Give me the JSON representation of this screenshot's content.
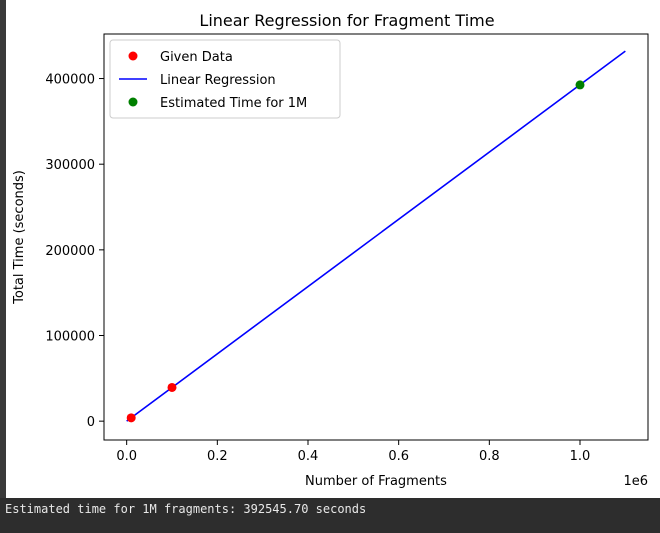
{
  "chart_data": {
    "type": "scatter",
    "title": "Linear Regression for Fragment Time",
    "xlabel": "Number of Fragments",
    "ylabel": "Total Time (seconds)",
    "x_offset_label": "1e6",
    "xlim": [
      -0.05,
      1.15
    ],
    "ylim": [
      -22000,
      452000
    ],
    "x_ticks": [
      0.0,
      0.2,
      0.4,
      0.6,
      0.8,
      1.0
    ],
    "x_tick_labels": [
      "0.0",
      "0.2",
      "0.4",
      "0.6",
      "0.8",
      "1.0"
    ],
    "y_ticks": [
      0,
      100000,
      200000,
      300000,
      400000
    ],
    "y_tick_labels": [
      "0",
      "100000",
      "200000",
      "300000",
      "400000"
    ],
    "grid": false,
    "legend_position": "top-left",
    "series": [
      {
        "name": "Given Data",
        "kind": "scatter",
        "color": "#ff0000",
        "points": [
          [
            0.01,
            3900
          ],
          [
            0.1,
            39300
          ]
        ]
      },
      {
        "name": "Linear Regression",
        "kind": "line",
        "color": "#0000ff",
        "points": [
          [
            0.0,
            0
          ],
          [
            1.1,
            432000
          ]
        ]
      },
      {
        "name": "Estimated Time for 1M",
        "kind": "scatter",
        "color": "#008000",
        "points": [
          [
            1.0,
            392545.7
          ]
        ]
      }
    ]
  },
  "console": {
    "output": "Estimated time for 1M fragments: 392545.70 seconds"
  }
}
